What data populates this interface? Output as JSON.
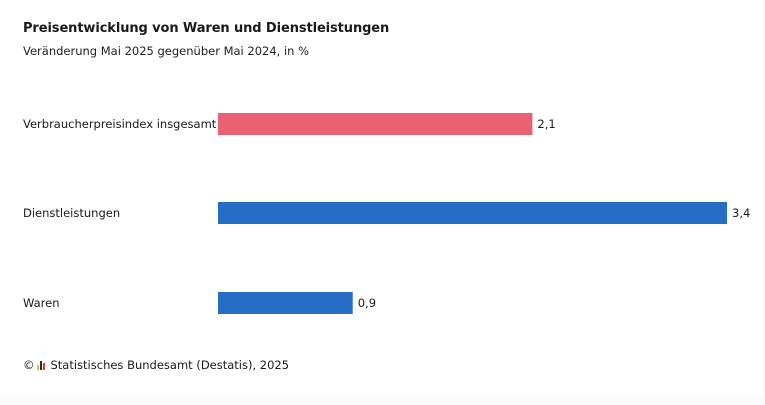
{
  "chart_data": {
    "type": "bar",
    "orientation": "horizontal",
    "title": "Preisentwicklung von Waren und Dienstleistungen",
    "subtitle": "Veränderung Mai 2025 gegenüber Mai 2024, in %",
    "categories": [
      "Verbraucherpreisindex insgesamt",
      "Dienstleistungen",
      "Waren"
    ],
    "values": [
      2.1,
      3.4,
      0.9
    ],
    "value_labels": [
      "2,1",
      "3,4",
      "0,9"
    ],
    "colors": [
      "#e96173",
      "#266ec5",
      "#266ec5"
    ],
    "xlim": [
      0,
      3.4
    ],
    "grid": false,
    "xlabel": "",
    "ylabel": ""
  },
  "footer": {
    "copyright_symbol": "©",
    "source_icon": "destatis-logo-icon",
    "text": "Statistisches Bundesamt (Destatis), 2025"
  }
}
